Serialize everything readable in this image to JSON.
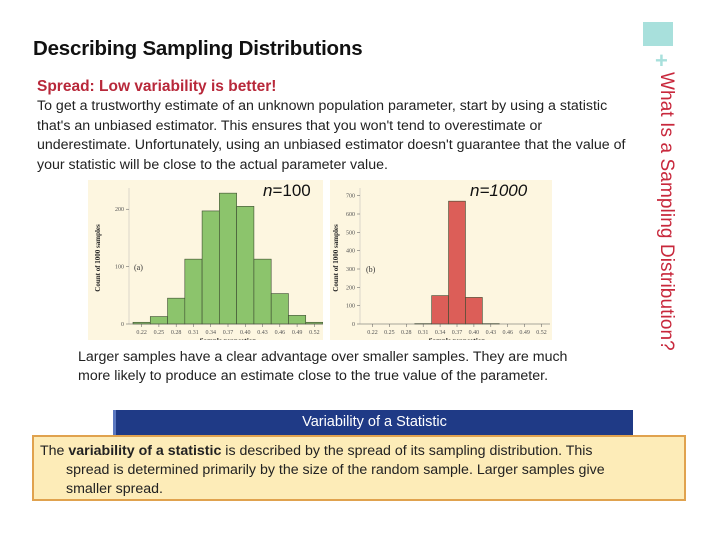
{
  "slide": {
    "title": "Describing Sampling Distributions",
    "side_title": "What Is a Sampling Distribution?",
    "accent_color": "#a8e0dc",
    "side_title_color": "#c8283c",
    "plus_glyph": "+"
  },
  "section": {
    "subtitle": "Spread: Low variability is better!",
    "intro": "To get a trustworthy estimate of an unknown population parameter, start by using a statistic that's an unbiased estimator. This ensures that you won't tend to overestimate or underestimate. Unfortunately, using an unbiased estimator doesn't guarantee that the value of your statistic will be close to the actual parameter value.",
    "larger_samples": "Larger samples have a clear advantage over smaller samples. They are much more likely to produce an estimate close to the true value of the parameter."
  },
  "definition_box": {
    "header": "Variability of a Statistic",
    "lead": "The ",
    "term": "variability of a statistic",
    "rest_line1": " is described by the spread of its sampling distribution. This",
    "rest_line2": "spread is determined primarily by the size of the random sample. Larger samples give",
    "rest_line3": "smaller spread.",
    "header_color": "#1f3a86",
    "body_color": "#fdecb8",
    "border_color": "#e0a24e"
  },
  "chart_data": [
    {
      "type": "bar",
      "title": "n=100",
      "panel_label": "(a)",
      "xlabel": "Sample proportion",
      "ylabel": "Count of 1000 samples",
      "categories": [
        "0.22",
        "0.25",
        "0.28",
        "0.31",
        "0.34",
        "0.37",
        "0.40",
        "0.43",
        "0.46",
        "0.49",
        "0.52"
      ],
      "values": [
        3,
        13,
        45,
        113,
        197,
        228,
        205,
        113,
        53,
        15,
        3
      ],
      "yticks": [
        0,
        100,
        200
      ],
      "ylim": [
        0,
        230
      ],
      "bar_color": "#8cc46c",
      "grid": false
    },
    {
      "type": "bar",
      "title": "n=1000",
      "panel_label": "(b)",
      "xlabel": "Sample proportion",
      "ylabel": "Count of 1000 samples",
      "categories": [
        "0.22",
        "0.25",
        "0.28",
        "0.31",
        "0.34",
        "0.37",
        "0.40",
        "0.43",
        "0.46",
        "0.49",
        "0.52"
      ],
      "values": [
        0,
        0,
        0,
        2,
        155,
        670,
        145,
        2,
        0,
        0,
        0
      ],
      "yticks": [
        0,
        100,
        200,
        300,
        400,
        500,
        600,
        700
      ],
      "ylim": [
        0,
        720
      ],
      "bar_color": "#dc5e58",
      "grid": false
    }
  ]
}
